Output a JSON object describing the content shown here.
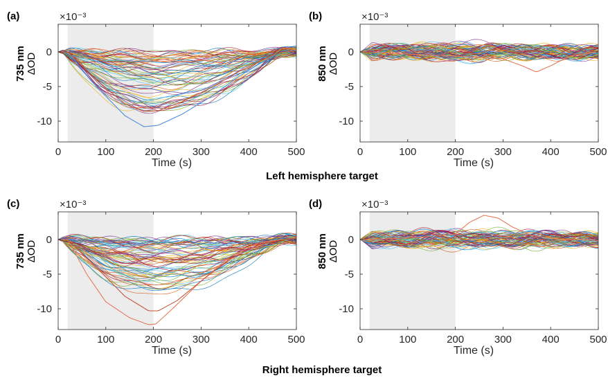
{
  "captions": {
    "left": "Left hemisphere target",
    "right": "Right hemisphere target"
  },
  "colors": {
    "shading": "#ececec",
    "axis": "#262626",
    "series_palette": [
      "#0072BD",
      "#D95319",
      "#EDB120",
      "#7E2F8E",
      "#77AC30",
      "#4DBEEE",
      "#A2142F"
    ]
  },
  "chart_data": [
    {
      "panel_label": "(a)",
      "type": "line",
      "ylabel_line1": "735 nm",
      "ylabel_line2": "ΔOD",
      "xlabel": "Time (s)",
      "exponent_label": "×10⁻³",
      "xlim": [
        0,
        500
      ],
      "ylim": [
        -13,
        4
      ],
      "xticks": [
        0,
        100,
        200,
        300,
        400,
        500
      ],
      "yticks": [
        0,
        -5,
        -10
      ],
      "shaded_interval": [
        20,
        200
      ],
      "curve_count": 200,
      "envelope": {
        "min_at_200s": -11,
        "typical_min": -2.5,
        "max": 1.5
      },
      "highlight_curves": [
        {
          "x": [
            0,
            20,
            80,
            140,
            180,
            210,
            260,
            320,
            380,
            440,
            470,
            500
          ],
          "y": [
            0,
            0,
            -5,
            -9.2,
            -10.8,
            -10.6,
            -9,
            -6.5,
            -3.5,
            -1,
            0,
            0.2
          ]
        },
        {
          "x": [
            0,
            20,
            80,
            140,
            180,
            210,
            260,
            320,
            380,
            440,
            470,
            500
          ],
          "y": [
            0,
            0,
            -4,
            -7.5,
            -8.6,
            -8.5,
            -7.2,
            -5.2,
            -2.8,
            -0.8,
            0,
            0.1
          ]
        }
      ]
    },
    {
      "panel_label": "(b)",
      "type": "line",
      "ylabel_line1": "850 nm",
      "ylabel_line2": "ΔOD",
      "xlabel": "Time (s)",
      "exponent_label": "×10⁻³",
      "xlim": [
        0,
        500
      ],
      "ylim": [
        -13,
        4
      ],
      "xticks": [
        0,
        100,
        200,
        300,
        400,
        500
      ],
      "yticks": [
        0,
        -5,
        -10
      ],
      "shaded_interval": [
        20,
        200
      ],
      "curve_count": 200,
      "envelope": {
        "min": -3,
        "max": 2.3
      },
      "highlight_curves": [
        {
          "x": [
            0,
            20,
            100,
            200,
            300,
            340,
            370,
            400,
            440,
            500
          ],
          "y": [
            0,
            0,
            -0.3,
            -0.6,
            -1,
            -2,
            -2.9,
            -2,
            -0.6,
            0
          ]
        }
      ]
    },
    {
      "panel_label": "(c)",
      "type": "line",
      "ylabel_line1": "735 nm",
      "ylabel_line2": "ΔOD",
      "xlabel": "Time (s)",
      "exponent_label": "×10⁻³",
      "xlim": [
        0,
        500
      ],
      "ylim": [
        -13,
        4
      ],
      "xticks": [
        0,
        100,
        200,
        300,
        400,
        500
      ],
      "yticks": [
        0,
        -5,
        -10
      ],
      "shaded_interval": [
        20,
        200
      ],
      "curve_count": 200,
      "envelope": {
        "min_at_200s": -12.5,
        "typical_min": -3,
        "max": 1.2
      },
      "highlight_curves": [
        {
          "x": [
            0,
            20,
            60,
            100,
            150,
            190,
            205,
            240,
            300,
            360,
            420,
            470,
            500
          ],
          "y": [
            0,
            0,
            -5,
            -9,
            -11.3,
            -12.3,
            -12.2,
            -10,
            -6,
            -2.5,
            -0.5,
            0,
            0.3
          ]
        },
        {
          "x": [
            0,
            20,
            80,
            140,
            190,
            210,
            250,
            300,
            360,
            420,
            470,
            500
          ],
          "y": [
            0,
            0,
            -4,
            -8.2,
            -10.3,
            -10.3,
            -8.8,
            -6,
            -2.8,
            -0.8,
            0,
            0.2
          ]
        }
      ]
    },
    {
      "panel_label": "(d)",
      "type": "line",
      "ylabel_line1": "850 nm",
      "ylabel_line2": "ΔOD",
      "xlabel": "Time (s)",
      "exponent_label": "×10⁻³",
      "xlim": [
        0,
        500
      ],
      "ylim": [
        -13,
        4
      ],
      "xticks": [
        0,
        100,
        200,
        300,
        400,
        500
      ],
      "yticks": [
        0,
        -5,
        -10
      ],
      "shaded_interval": [
        20,
        200
      ],
      "curve_count": 200,
      "envelope": {
        "min": -3,
        "max": 3.5
      },
      "highlight_curves": [
        {
          "x": [
            0,
            20,
            120,
            200,
            230,
            260,
            290,
            320,
            360,
            420,
            500
          ],
          "y": [
            0,
            0,
            0.3,
            0.8,
            2.5,
            3.5,
            3.1,
            1.8,
            0.6,
            0,
            0
          ]
        }
      ]
    }
  ]
}
